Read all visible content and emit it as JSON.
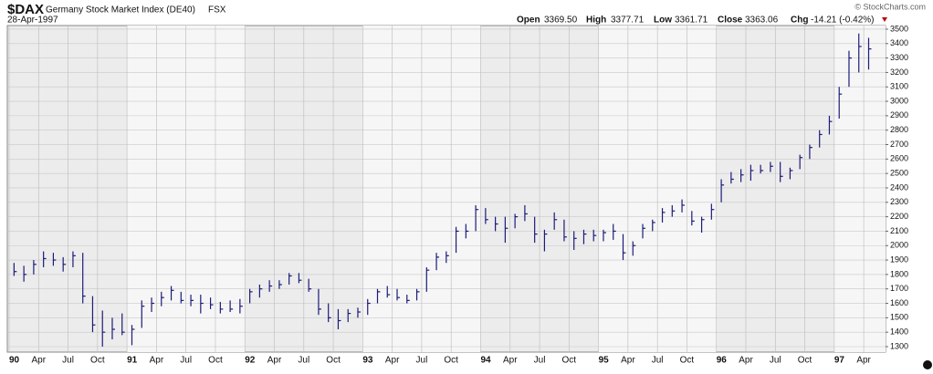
{
  "header": {
    "symbol": "$DAX",
    "name": "Germany Stock Market Index (DE40)",
    "exchange": "FSX",
    "date": "28-Apr-1997",
    "open_label": "Open",
    "open": "3369.50",
    "high_label": "High",
    "high": "3377.71",
    "low_label": "Low",
    "low": "3361.71",
    "close_label": "Close",
    "close": "3363.06",
    "chg_label": "Chg",
    "chg": "-14.21 (-0.42%)",
    "brand": "© StockCharts.com"
  },
  "chart_data": {
    "type": "ohlc",
    "color": "#1c1c7a",
    "grid": true,
    "categories": [
      "90",
      null,
      null,
      "Apr",
      null,
      null,
      "Jul",
      null,
      null,
      "Oct",
      null,
      null,
      "91",
      null,
      null,
      "Apr",
      null,
      null,
      "Jul",
      null,
      null,
      "Oct",
      null,
      null,
      "92",
      null,
      null,
      "Apr",
      null,
      null,
      "Jul",
      null,
      null,
      "Oct",
      null,
      null,
      "93",
      null,
      null,
      "Apr",
      null,
      null,
      "Jul",
      null,
      null,
      "Oct",
      null,
      null,
      "94",
      null,
      null,
      "Apr",
      null,
      null,
      "Jul",
      null,
      null,
      "Oct",
      null,
      null,
      "95",
      null,
      null,
      "Apr",
      null,
      null,
      "Jul",
      null,
      null,
      "Oct",
      null,
      null,
      "96",
      null,
      null,
      "Apr",
      null,
      null,
      "Jul",
      null,
      null,
      "Oct",
      null,
      null,
      "97",
      null,
      null,
      "Apr"
    ],
    "high": [
      1880,
      1860,
      1900,
      1960,
      1950,
      1920,
      1960,
      1950,
      1650,
      1550,
      1500,
      1530,
      1450,
      1620,
      1640,
      1680,
      1720,
      1680,
      1660,
      1660,
      1640,
      1610,
      1620,
      1630,
      1700,
      1730,
      1760,
      1760,
      1810,
      1810,
      1770,
      1700,
      1600,
      1560,
      1560,
      1570,
      1630,
      1700,
      1720,
      1700,
      1660,
      1700,
      1850,
      1950,
      1960,
      2130,
      2150,
      2280,
      2260,
      2200,
      2200,
      2220,
      2280,
      2200,
      2110,
      2230,
      2180,
      2100,
      2110,
      2110,
      2110,
      2150,
      2080,
      2030,
      2150,
      2180,
      2260,
      2280,
      2320,
      2240,
      2200,
      2290,
      2460,
      2510,
      2530,
      2560,
      2560,
      2580,
      2580,
      2540,
      2630,
      2700,
      2800,
      2900,
      3100,
      3350,
      3470,
      3440
    ],
    "low": [
      1790,
      1750,
      1800,
      1850,
      1860,
      1820,
      1850,
      1600,
      1400,
      1300,
      1350,
      1380,
      1310,
      1430,
      1540,
      1580,
      1620,
      1600,
      1580,
      1530,
      1560,
      1530,
      1540,
      1530,
      1600,
      1640,
      1680,
      1700,
      1730,
      1740,
      1680,
      1520,
      1470,
      1420,
      1470,
      1500,
      1520,
      1600,
      1640,
      1620,
      1600,
      1620,
      1680,
      1830,
      1880,
      1950,
      2050,
      2100,
      2150,
      2100,
      2020,
      2120,
      2170,
      2020,
      1960,
      2110,
      2030,
      1970,
      2010,
      2030,
      2030,
      2040,
      1900,
      1930,
      2050,
      2100,
      2160,
      2200,
      2230,
      2140,
      2090,
      2180,
      2300,
      2430,
      2440,
      2450,
      2500,
      2510,
      2440,
      2460,
      2530,
      2600,
      2680,
      2770,
      2880,
      3100,
      3200,
      3220
    ],
    "close": [
      1820,
      1800,
      1870,
      1910,
      1900,
      1870,
      1930,
      1650,
      1450,
      1400,
      1420,
      1400,
      1420,
      1580,
      1600,
      1640,
      1690,
      1620,
      1620,
      1600,
      1590,
      1560,
      1560,
      1580,
      1680,
      1700,
      1720,
      1730,
      1790,
      1760,
      1700,
      1560,
      1500,
      1480,
      1530,
      1540,
      1600,
      1680,
      1660,
      1640,
      1620,
      1680,
      1830,
      1920,
      1930,
      2100,
      2100,
      2250,
      2180,
      2150,
      2120,
      2200,
      2220,
      2080,
      2080,
      2180,
      2060,
      2050,
      2080,
      2070,
      2090,
      2100,
      1950,
      2000,
      2120,
      2160,
      2230,
      2240,
      2280,
      2170,
      2180,
      2250,
      2420,
      2460,
      2490,
      2520,
      2520,
      2550,
      2480,
      2520,
      2610,
      2680,
      2770,
      2860,
      3050,
      3300,
      3380,
      3363
    ],
    "ylim": [
      1262,
      3525
    ],
    "yticks": [
      1300,
      1400,
      1500,
      1600,
      1700,
      1800,
      1900,
      2000,
      2100,
      2200,
      2300,
      2400,
      2500,
      2600,
      2700,
      2800,
      2900,
      3000,
      3100,
      3200,
      3300,
      3400,
      3500
    ]
  }
}
